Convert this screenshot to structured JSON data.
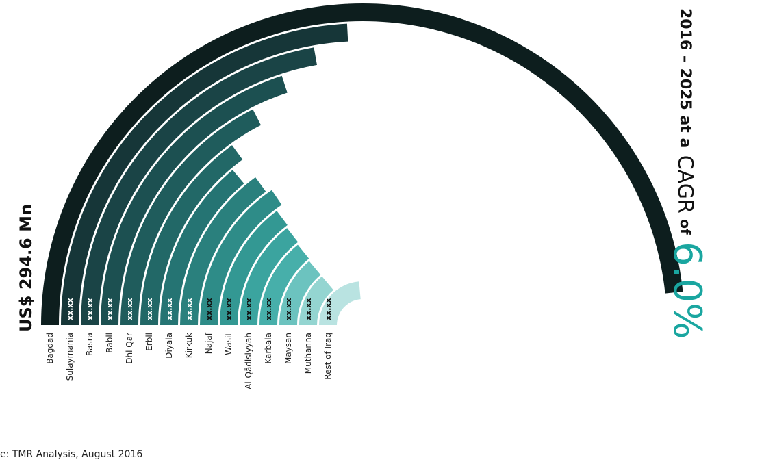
{
  "chart_data": {
    "type": "radial-bar",
    "title": "",
    "market_value": "US$ 294.6 Mn",
    "headline_lines": [
      "2016 – 2025 at a",
      "CAGR",
      "of",
      "6.0%"
    ],
    "source_note": "e: TMR Analysis, August 2016",
    "categories": [
      "Bagdad",
      "Sulaymania",
      "Basra",
      "Babil",
      "Dhi Qar",
      "Erbil",
      "Diyala",
      "Kirkuk",
      "Najaf",
      "Wasit",
      "Al-Qādisiyyah",
      "Karbala",
      "Maysan",
      "Muthanna",
      "Rest of Iraq"
    ],
    "value_labels": [
      "",
      "xx.xx",
      "xx.xx",
      "xx.xx",
      "xx.xx",
      "xx.xx",
      "xx.xx",
      "xx.xx",
      "xx.xx",
      "xx.xx",
      "xx.xx",
      "xx.xx",
      "xx.xx",
      "xx.xx",
      "xx.xx"
    ],
    "sweep_degrees": [
      174,
      87,
      80,
      72,
      63,
      54,
      50,
      54,
      56,
      53,
      52,
      51,
      50,
      50,
      85
    ],
    "colors": [
      "#0d1e1e",
      "#163638",
      "#1a4446",
      "#1c5051",
      "#1f5c5c",
      "#226867",
      "#257473",
      "#2a807d",
      "#2e8c88",
      "#339893",
      "#3ba49f",
      "#47afaa",
      "#6cc3bf",
      "#94d5d1",
      "#b9e3e1"
    ]
  }
}
